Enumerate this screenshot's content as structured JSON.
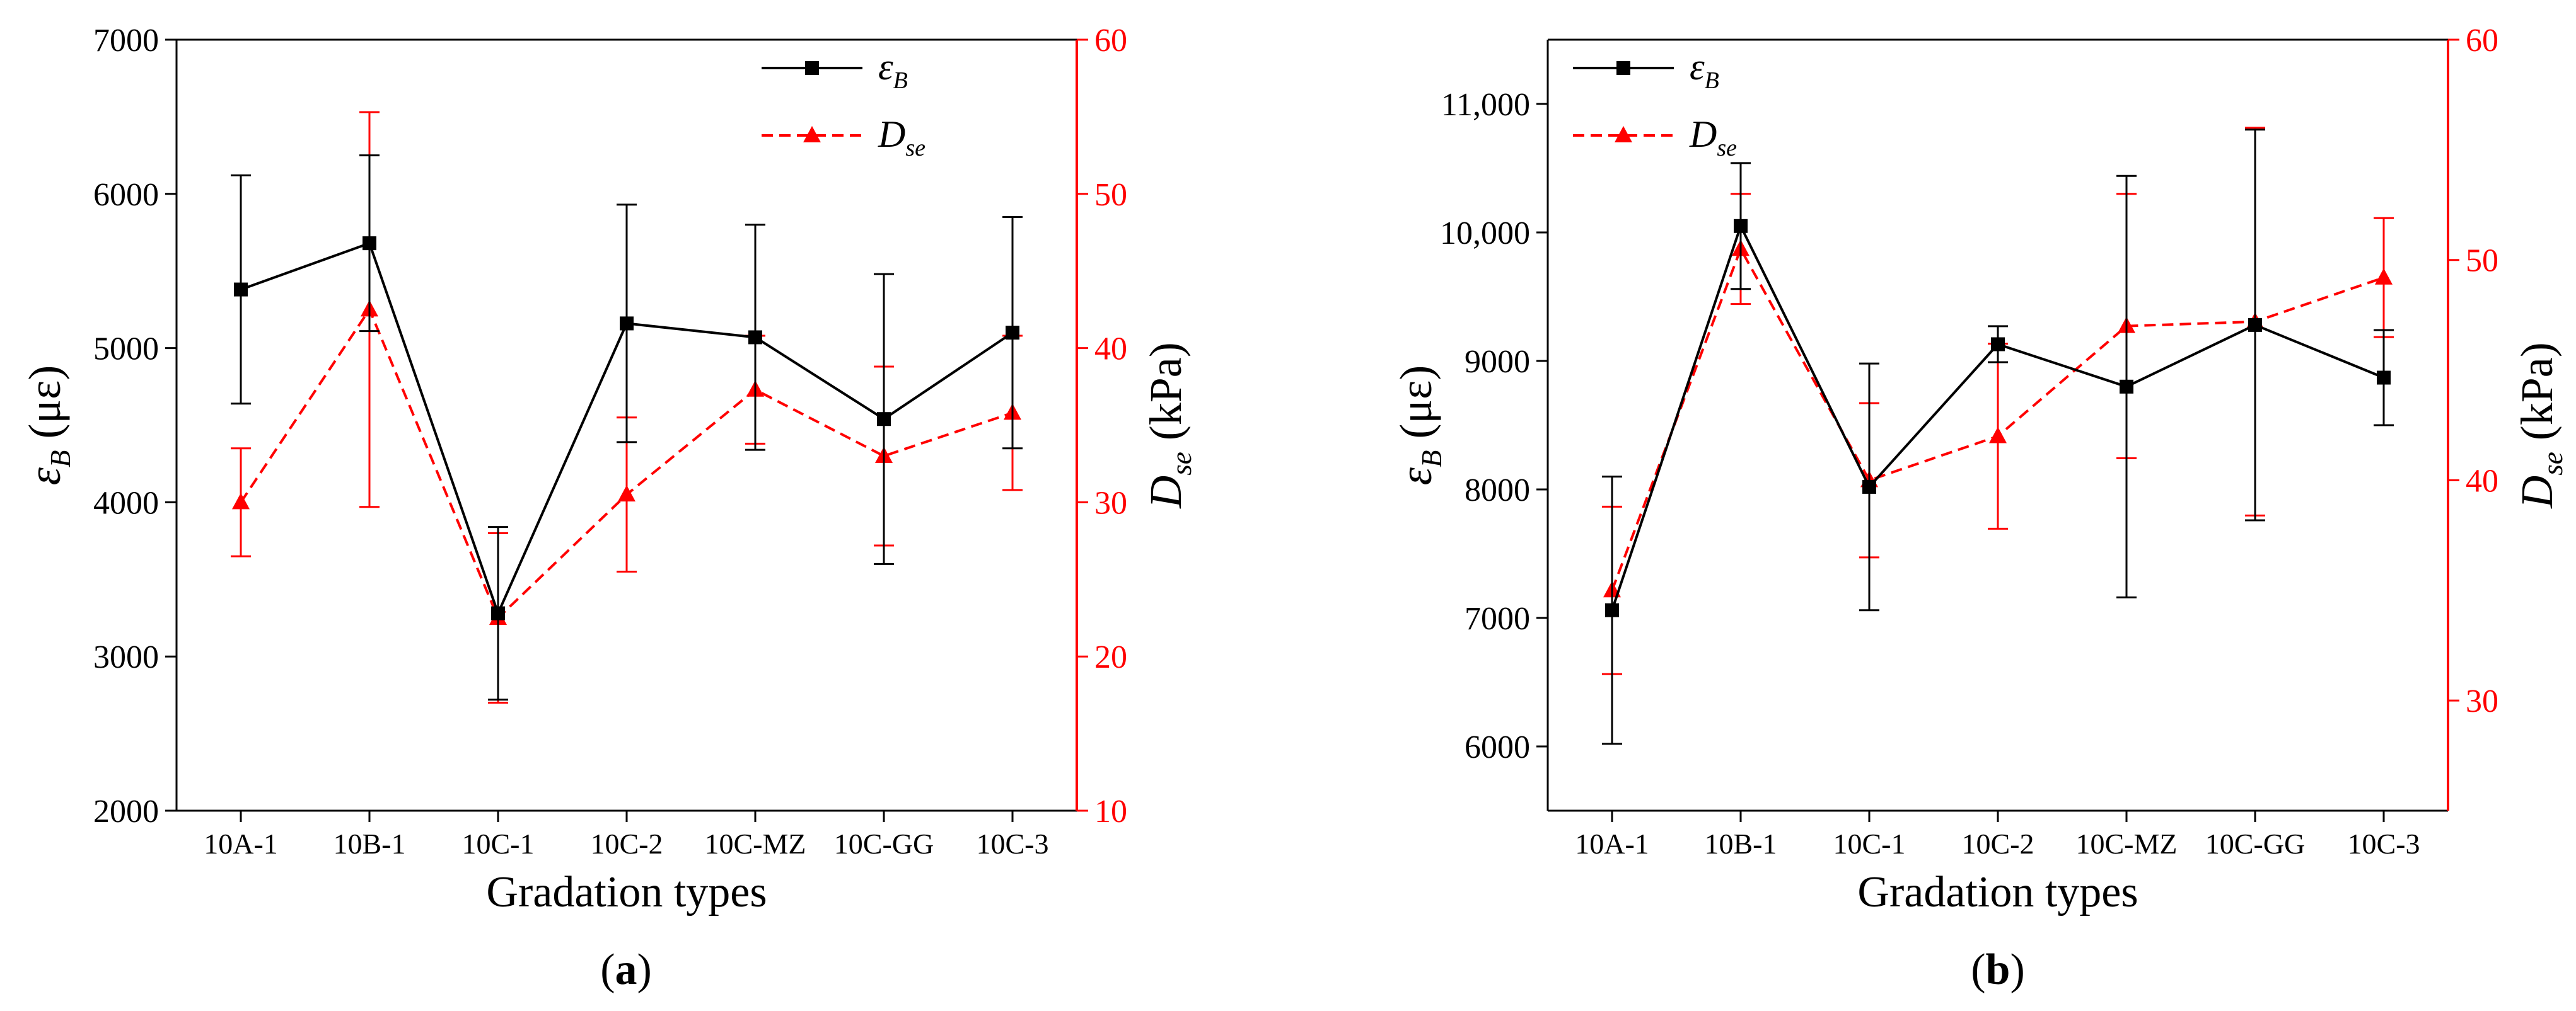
{
  "colors": {
    "black_series": "#000000",
    "red_series": "#ff0000"
  },
  "chart_data": [
    {
      "type": "line",
      "panel_label": "a",
      "categories": [
        "10A-1",
        "10B-1",
        "10C-1",
        "10C-2",
        "10C-MZ",
        "10C-GG",
        "10C-3"
      ],
      "xlabel": "Gradation types",
      "ylabel_left": {
        "symbol": "ε",
        "sub": "B",
        "unit": "(με)"
      },
      "ylabel_right": {
        "symbol": "D",
        "sub": "se",
        "unit": "(kPa)"
      },
      "y_left": {
        "min": 2000,
        "max": 7000,
        "ticks": [
          2000,
          3000,
          4000,
          5000,
          6000,
          7000
        ],
        "tick_labels": [
          "2000",
          "3000",
          "4000",
          "5000",
          "6000",
          "7000"
        ]
      },
      "y_right": {
        "min": 10,
        "max": 60,
        "ticks": [
          10,
          20,
          30,
          40,
          50,
          60
        ],
        "tick_labels": [
          "10",
          "20",
          "30",
          "40",
          "50",
          "60"
        ]
      },
      "legend_position": "top-right",
      "series": [
        {
          "name": "εB",
          "legend_symbol": "ε",
          "legend_sub": "B",
          "axis": "left",
          "marker": "square",
          "dash": false,
          "values": [
            5380,
            5680,
            3280,
            5160,
            5070,
            4540,
            5100
          ],
          "err": [
            740,
            570,
            560,
            770,
            730,
            940,
            750
          ]
        },
        {
          "name": "Dse",
          "legend_symbol": "D",
          "legend_sub": "se",
          "axis": "right",
          "marker": "triangle",
          "dash": true,
          "values": [
            30.0,
            42.5,
            22.5,
            30.5,
            37.3,
            33.0,
            35.8
          ],
          "err": [
            3.5,
            12.8,
            5.5,
            5.0,
            3.5,
            5.8,
            5.0
          ]
        }
      ]
    },
    {
      "type": "line",
      "panel_label": "b",
      "categories": [
        "10A-1",
        "10B-1",
        "10C-1",
        "10C-2",
        "10C-MZ",
        "10C-GG",
        "10C-3"
      ],
      "xlabel": "Gradation types",
      "ylabel_left": {
        "symbol": "ε",
        "sub": "B",
        "unit": "(με)"
      },
      "ylabel_right": {
        "symbol": "D",
        "sub": "se",
        "unit": "(kPa)"
      },
      "y_left": {
        "min": 5500,
        "max": 11500,
        "ticks": [
          6000,
          7000,
          8000,
          9000,
          10000,
          11000
        ],
        "tick_labels": [
          "6000",
          "7000",
          "8000",
          "9000",
          "10,000",
          "11,000"
        ]
      },
      "y_right": {
        "min": 25,
        "max": 60,
        "ticks": [
          30,
          40,
          50,
          60
        ],
        "tick_labels": [
          "30",
          "40",
          "50",
          "60"
        ]
      },
      "legend_position": "top-left",
      "series": [
        {
          "name": "εB",
          "legend_symbol": "ε",
          "legend_sub": "B",
          "axis": "left",
          "marker": "square",
          "dash": false,
          "values": [
            7060,
            10050,
            8020,
            9130,
            8800,
            9280,
            8870
          ],
          "err": [
            1040,
            490,
            960,
            140,
            1640,
            1520,
            370
          ]
        },
        {
          "name": "Dse",
          "legend_symbol": "D",
          "legend_sub": "se",
          "axis": "right",
          "marker": "triangle",
          "dash": true,
          "values": [
            35.0,
            50.5,
            40.0,
            42.0,
            47.0,
            47.2,
            49.2
          ],
          "err": [
            3.8,
            2.5,
            3.5,
            4.2,
            6.0,
            8.8,
            2.7
          ]
        }
      ]
    }
  ]
}
